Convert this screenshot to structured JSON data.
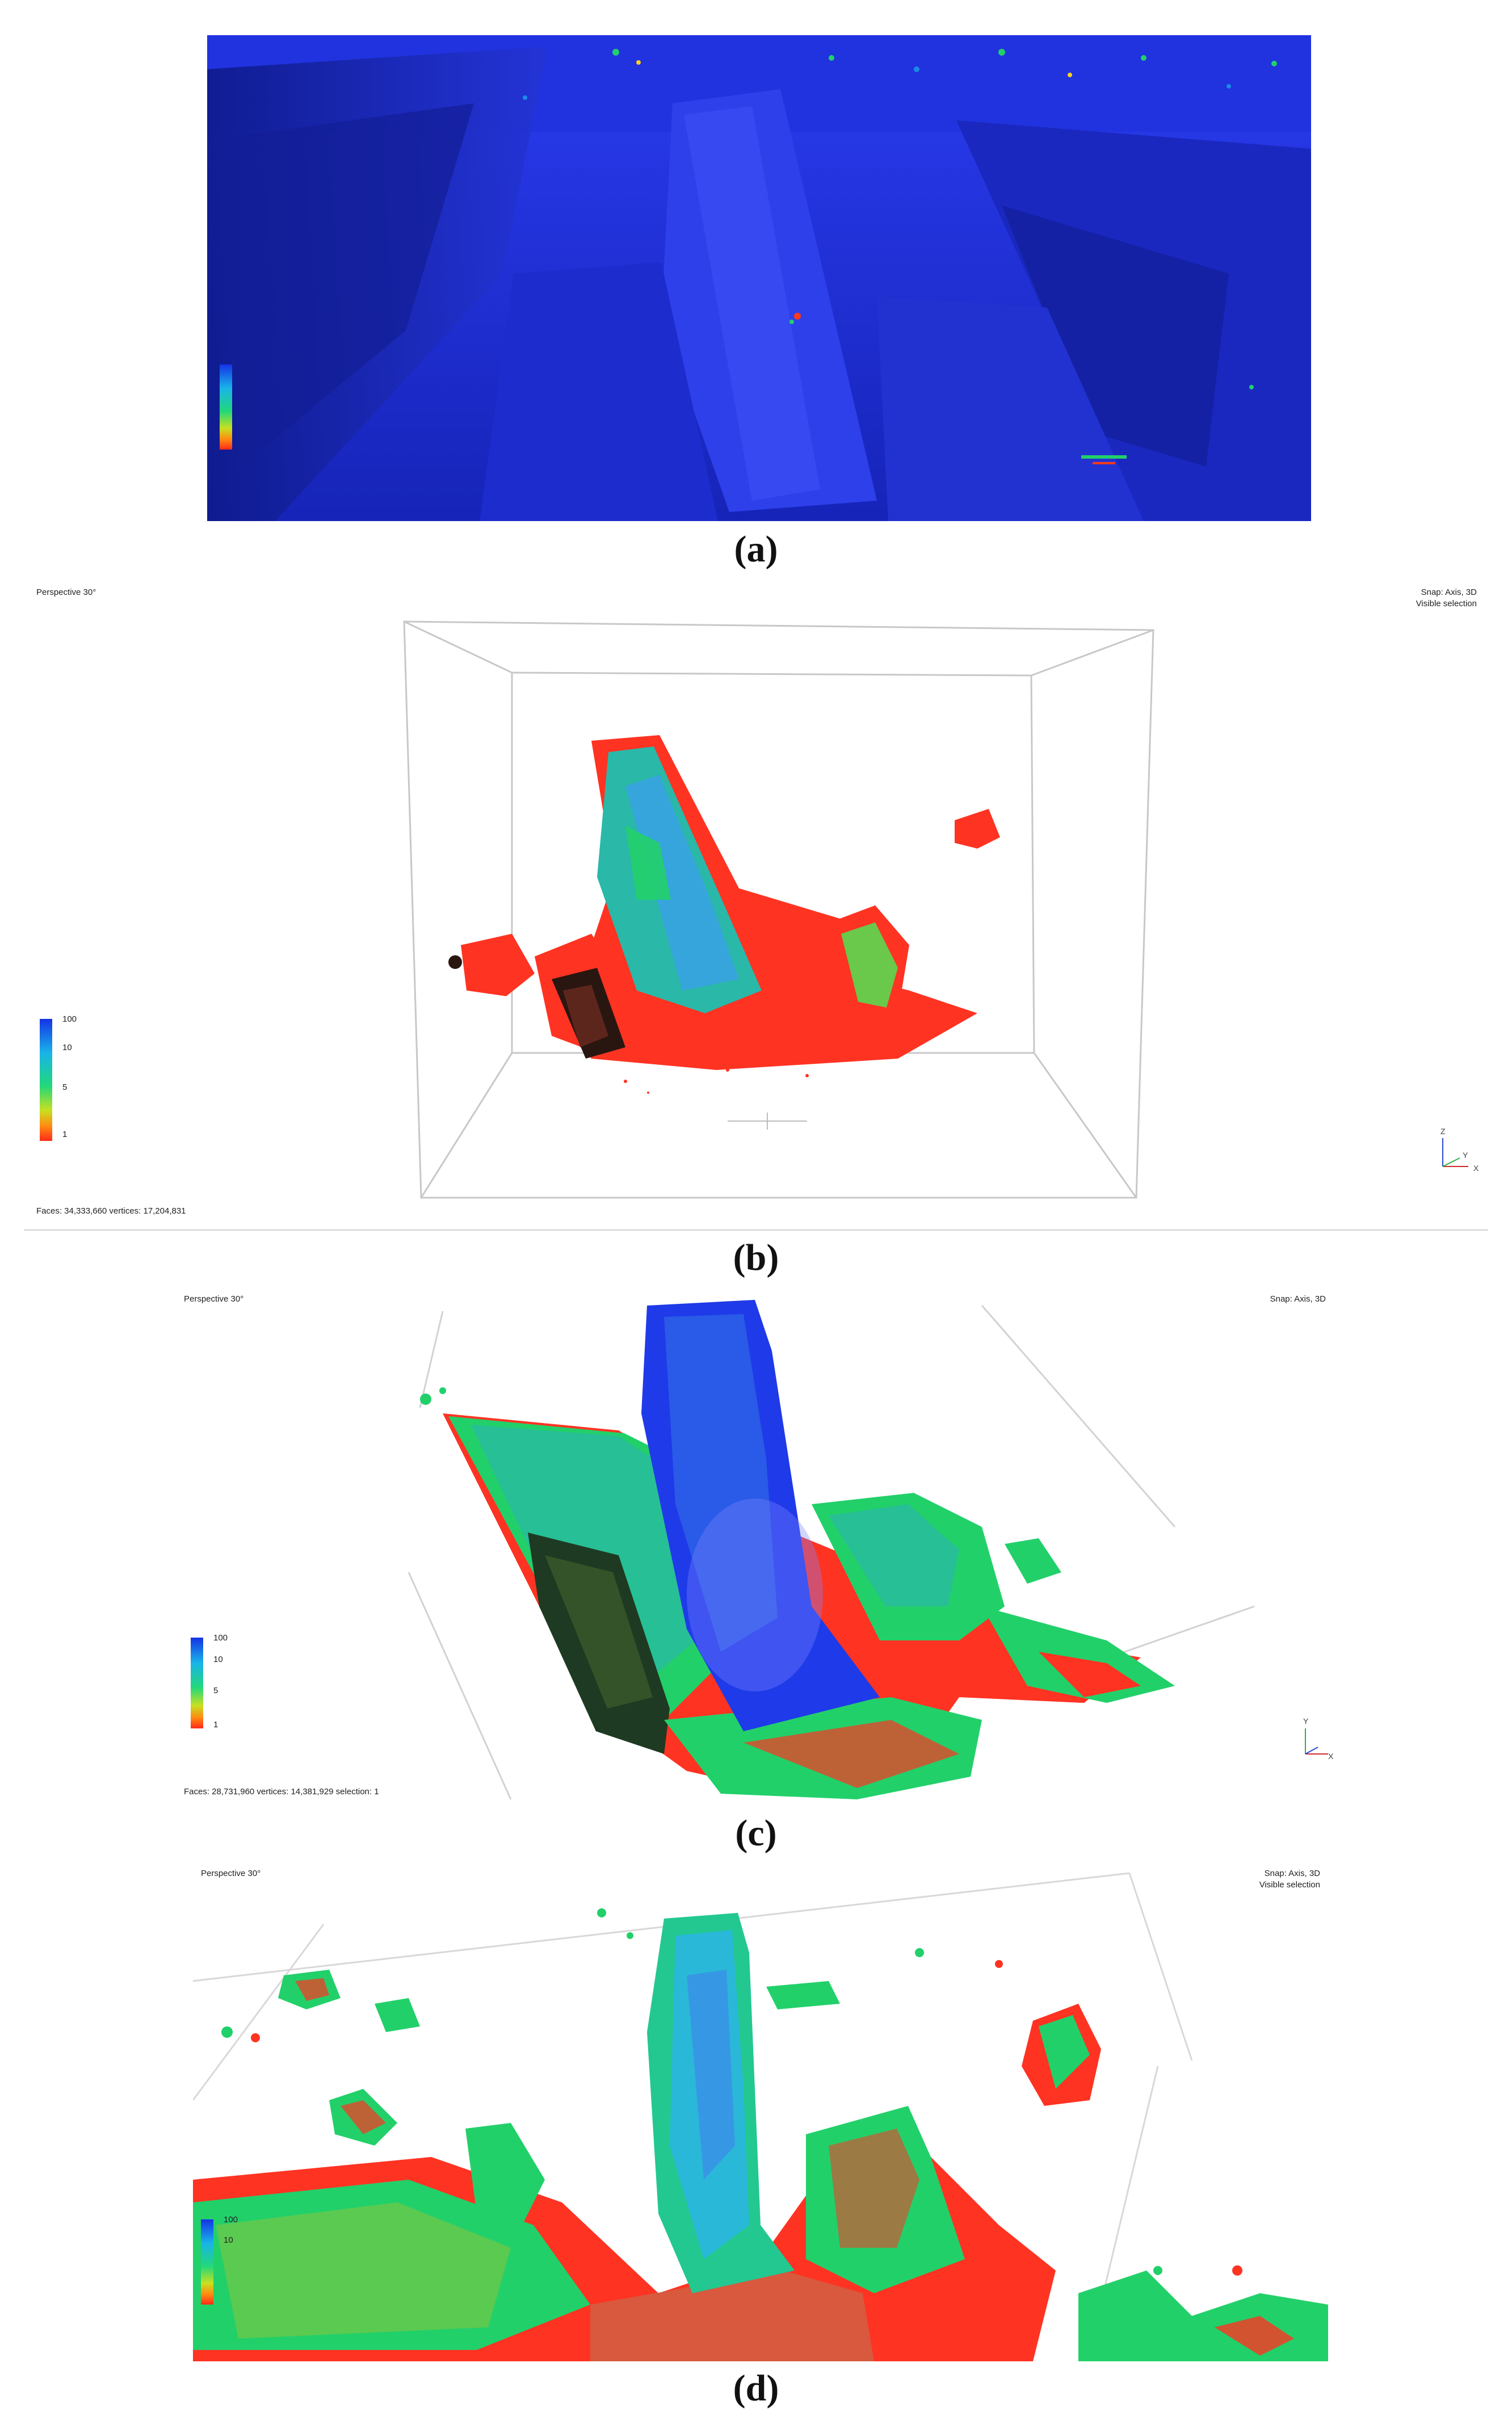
{
  "figure": {
    "panels": [
      {
        "id": "a",
        "caption": "(a)",
        "status": "",
        "scalar_colors": [
          "#1a2fe0",
          "#1a8ae8",
          "#22d06a",
          "#ffd020",
          "#ff3a1a"
        ]
      },
      {
        "id": "b",
        "caption": "(b)",
        "view_label": "Perspective 30°",
        "snap_label": "Snap: Axis, 3D",
        "selection_label": "Visible selection",
        "status": "Faces: 34,333,660 vertices: 17,204,831",
        "legend_ticks": [
          "100",
          "10",
          "5",
          "1"
        ],
        "axes": [
          "Z",
          "Y",
          "X"
        ]
      },
      {
        "id": "c",
        "caption": "(c)",
        "view_label": "Perspective 30°",
        "snap_label": "Snap: Axis, 3D",
        "status": "Faces: 28,731,960 vertices: 14,381,929 selection: 1",
        "legend_ticks": [
          "100",
          "10",
          "5",
          "1"
        ],
        "axes": [
          "Y",
          "X"
        ]
      },
      {
        "id": "d",
        "caption": "(d)",
        "view_label": "Perspective 30°",
        "snap_label": "Snap: Axis, 3D",
        "selection_label": "Visible selection",
        "legend_ticks": [
          "100",
          "10"
        ]
      }
    ]
  }
}
